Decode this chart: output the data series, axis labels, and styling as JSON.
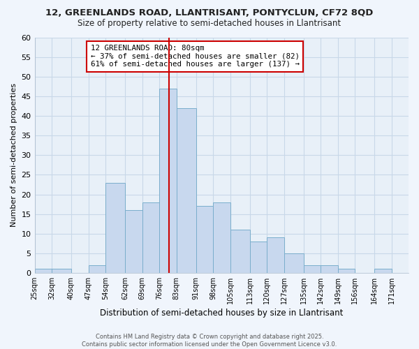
{
  "title1": "12, GREENLANDS ROAD, LLANTRISANT, PONTYCLUN, CF72 8QD",
  "title2": "Size of property relative to semi-detached houses in Llantrisant",
  "xlabel": "Distribution of semi-detached houses by size in Llantrisant",
  "ylabel": "Number of semi-detached properties",
  "bin_labels": [
    "25sqm",
    "32sqm",
    "40sqm",
    "47sqm",
    "54sqm",
    "62sqm",
    "69sqm",
    "76sqm",
    "83sqm",
    "91sqm",
    "98sqm",
    "105sqm",
    "113sqm",
    "120sqm",
    "127sqm",
    "135sqm",
    "142sqm",
    "149sqm",
    "156sqm",
    "164sqm",
    "171sqm"
  ],
  "bin_edges": [
    25,
    32,
    40,
    47,
    54,
    62,
    69,
    76,
    83,
    91,
    98,
    105,
    113,
    120,
    127,
    135,
    142,
    149,
    156,
    164,
    171,
    178
  ],
  "bar_heights": [
    1,
    1,
    0,
    2,
    23,
    16,
    18,
    47,
    42,
    17,
    18,
    11,
    8,
    9,
    5,
    2,
    2,
    1,
    0,
    1,
    0
  ],
  "bar_color": "#c8d8ee",
  "bar_edge_color": "#7aaecc",
  "property_line_x": 80,
  "annotation_title": "12 GREENLANDS ROAD: 80sqm",
  "annotation_line1": "← 37% of semi-detached houses are smaller (82)",
  "annotation_line2": "61% of semi-detached houses are larger (137) →",
  "vline_color": "#cc0000",
  "ylim": [
    0,
    60
  ],
  "yticks": [
    0,
    5,
    10,
    15,
    20,
    25,
    30,
    35,
    40,
    45,
    50,
    55,
    60
  ],
  "grid_color": "#c8d8e8",
  "bg_color": "#e8f0f8",
  "fig_bg": "#f0f5fc",
  "footer1": "Contains HM Land Registry data © Crown copyright and database right 2025.",
  "footer2": "Contains public sector information licensed under the Open Government Licence v3.0."
}
